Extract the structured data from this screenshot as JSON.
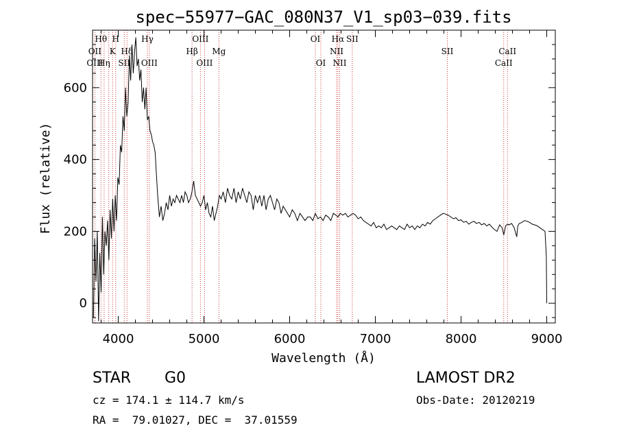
{
  "chart_data": {
    "type": "line",
    "title": "spec−55977−GAC_080N37_V1_sp03−039.fits",
    "xlabel": "Wavelength (Å)",
    "ylabel": "Flux (relative)",
    "xlim": [
      3700,
      9100
    ],
    "ylim": [
      -55,
      760
    ],
    "x_ticks": [
      4000,
      5000,
      6000,
      7000,
      8000,
      9000
    ],
    "y_ticks": [
      0,
      200,
      400,
      600
    ],
    "grid": false,
    "line_color": "#000000",
    "marker_color": "#cc3333",
    "series": [
      {
        "x": [
          3710,
          3725,
          3740,
          3755,
          3770,
          3785,
          3800,
          3815,
          3830,
          3845,
          3860,
          3875,
          3890,
          3905,
          3920,
          3935,
          3950,
          3965,
          3980,
          3995,
          4010,
          4025,
          4040,
          4055,
          4070,
          4085,
          4100,
          4115,
          4130,
          4145,
          4160,
          4175,
          4190,
          4205,
          4220,
          4235,
          4250,
          4265,
          4280,
          4295,
          4310,
          4325,
          4340,
          4355,
          4370,
          4385,
          4400,
          4415,
          4430,
          4445,
          4460,
          4480,
          4500,
          4520,
          4540,
          4560,
          4580,
          4600,
          4620,
          4640,
          4660,
          4680,
          4700,
          4720,
          4740,
          4760,
          4780,
          4800,
          4820,
          4840,
          4860,
          4880,
          4900,
          4920,
          4940,
          4960,
          4980,
          5000,
          5020,
          5040,
          5060,
          5080,
          5100,
          5120,
          5140,
          5160,
          5180,
          5200,
          5225,
          5250,
          5275,
          5300,
          5325,
          5350,
          5375,
          5400,
          5425,
          5450,
          5475,
          5500,
          5525,
          5550,
          5575,
          5600,
          5625,
          5650,
          5675,
          5700,
          5725,
          5750,
          5775,
          5800,
          5825,
          5850,
          5875,
          5900,
          5925,
          5950,
          5975,
          6000,
          6030,
          6060,
          6090,
          6120,
          6150,
          6180,
          6210,
          6240,
          6270,
          6300,
          6330,
          6360,
          6390,
          6420,
          6450,
          6480,
          6510,
          6540,
          6563,
          6590,
          6620,
          6650,
          6680,
          6710,
          6740,
          6770,
          6800,
          6830,
          6860,
          6890,
          6920,
          6950,
          6980,
          7010,
          7040,
          7070,
          7100,
          7130,
          7160,
          7190,
          7220,
          7250,
          7280,
          7310,
          7340,
          7370,
          7400,
          7430,
          7460,
          7490,
          7520,
          7550,
          7580,
          7610,
          7640,
          7670,
          7700,
          7730,
          7760,
          7790,
          7820,
          7850,
          7880,
          7910,
          7940,
          7970,
          8000,
          8030,
          8060,
          8090,
          8120,
          8150,
          8180,
          8210,
          8240,
          8270,
          8300,
          8330,
          8360,
          8390,
          8420,
          8450,
          8480,
          8498,
          8520,
          8542,
          8560,
          8590,
          8620,
          8650,
          8662,
          8680,
          8710,
          8740,
          8770,
          8800,
          8830,
          8860,
          8890,
          8920,
          8950,
          8980,
          8995,
          9000
        ],
        "values": [
          -40,
          180,
          60,
          200,
          -50,
          140,
          30,
          240,
          80,
          200,
          160,
          230,
          120,
          260,
          180,
          290,
          200,
          300,
          230,
          350,
          330,
          440,
          420,
          520,
          480,
          600,
          520,
          560,
          690,
          620,
          720,
          640,
          700,
          740,
          660,
          680,
          620,
          650,
          560,
          600,
          540,
          600,
          510,
          520,
          480,
          470,
          450,
          440,
          420,
          360,
          300,
          240,
          270,
          230,
          250,
          280,
          260,
          300,
          270,
          290,
          280,
          300,
          290,
          280,
          300,
          280,
          310,
          300,
          280,
          290,
          310,
          340,
          300,
          290,
          280,
          270,
          280,
          300,
          260,
          280,
          250,
          240,
          270,
          230,
          250,
          270,
          300,
          290,
          310,
          280,
          320,
          300,
          290,
          320,
          280,
          310,
          290,
          320,
          300,
          280,
          310,
          300,
          260,
          300,
          280,
          300,
          270,
          300,
          260,
          290,
          300,
          280,
          260,
          290,
          280,
          250,
          270,
          260,
          250,
          240,
          260,
          250,
          230,
          250,
          240,
          230,
          240,
          240,
          230,
          250,
          235,
          240,
          230,
          245,
          240,
          230,
          250,
          245,
          240,
          250,
          245,
          250,
          240,
          245,
          250,
          245,
          235,
          240,
          230,
          225,
          220,
          215,
          225,
          210,
          215,
          210,
          220,
          205,
          210,
          215,
          210,
          205,
          215,
          210,
          205,
          220,
          210,
          215,
          205,
          215,
          210,
          220,
          215,
          225,
          220,
          230,
          235,
          240,
          245,
          250,
          248,
          245,
          240,
          235,
          238,
          230,
          232,
          225,
          228,
          220,
          225,
          228,
          222,
          225,
          218,
          222,
          215,
          220,
          212,
          205,
          200,
          218,
          210,
          190,
          215,
          220,
          218,
          222,
          210,
          185,
          215,
          222,
          225,
          230,
          228,
          225,
          220,
          218,
          215,
          210,
          205,
          200,
          130,
          0
        ]
      }
    ],
    "line_markers": [
      {
        "label": "Hθ",
        "x": 3798,
        "row": 0,
        "offset": 0
      },
      {
        "label": "H",
        "x": 3970,
        "row": 0,
        "offset": 0
      },
      {
        "label": "Hγ",
        "x": 4340,
        "row": 0,
        "offset": 0
      },
      {
        "label": "OIII",
        "x": 4959,
        "row": 0,
        "offset": 0
      },
      {
        "label": "OI",
        "x": 6300,
        "row": 0,
        "offset": 0
      },
      {
        "label": "Hα",
        "x": 6563,
        "row": 0,
        "offset": 0
      },
      {
        "label": "SII",
        "x": 6731,
        "row": 0,
        "offset": 0
      },
      {
        "label": "OII",
        "x": 3727,
        "row": 1,
        "offset": 0
      },
      {
        "label": "K",
        "x": 3934,
        "row": 1,
        "offset": 0
      },
      {
        "label": "Hδ",
        "x": 4102,
        "row": 1,
        "offset": 0
      },
      {
        "label": "Hβ",
        "x": 4861,
        "row": 1,
        "offset": 0
      },
      {
        "label": "Mg",
        "x": 5175,
        "row": 1,
        "offset": 0
      },
      {
        "label": "NII",
        "x": 6548,
        "row": 1,
        "offset": 0
      },
      {
        "label": "SII",
        "x": 7840,
        "row": 1,
        "offset": 0
      },
      {
        "label": "CaII",
        "x": 8542,
        "row": 1,
        "offset": 0
      },
      {
        "label": "OIII",
        "x": 3727,
        "row": 2,
        "offset": 0
      },
      {
        "label": "Hη",
        "x": 3835,
        "row": 2,
        "offset": 0
      },
      {
        "label": "SII",
        "x": 4070,
        "row": 2,
        "offset": 0
      },
      {
        "label": "OIII",
        "x": 4363,
        "row": 2,
        "offset": 0
      },
      {
        "label": "OIII",
        "x": 5007,
        "row": 2,
        "offset": 0
      },
      {
        "label": "OI",
        "x": 6364,
        "row": 2,
        "offset": 0
      },
      {
        "label": "NII",
        "x": 6584,
        "row": 2,
        "offset": 0
      },
      {
        "label": "CaII",
        "x": 8498,
        "row": 2,
        "offset": 0
      }
    ],
    "marker_lines_x": [
      3727,
      3798,
      3835,
      3889,
      3934,
      3970,
      4070,
      4102,
      4340,
      4363,
      4861,
      4959,
      5007,
      5175,
      6300,
      6364,
      6548,
      6563,
      6584,
      6731,
      7840,
      8498,
      8542
    ]
  },
  "info": {
    "object_class": "STAR",
    "subclass": "G0",
    "survey": "LAMOST DR2",
    "velocity": "cz = 174.1 ± 114.7 km/s",
    "obs_date": "Obs-Date: 20120219",
    "coords": "RA =  79.01027, DEC =  37.01559"
  }
}
